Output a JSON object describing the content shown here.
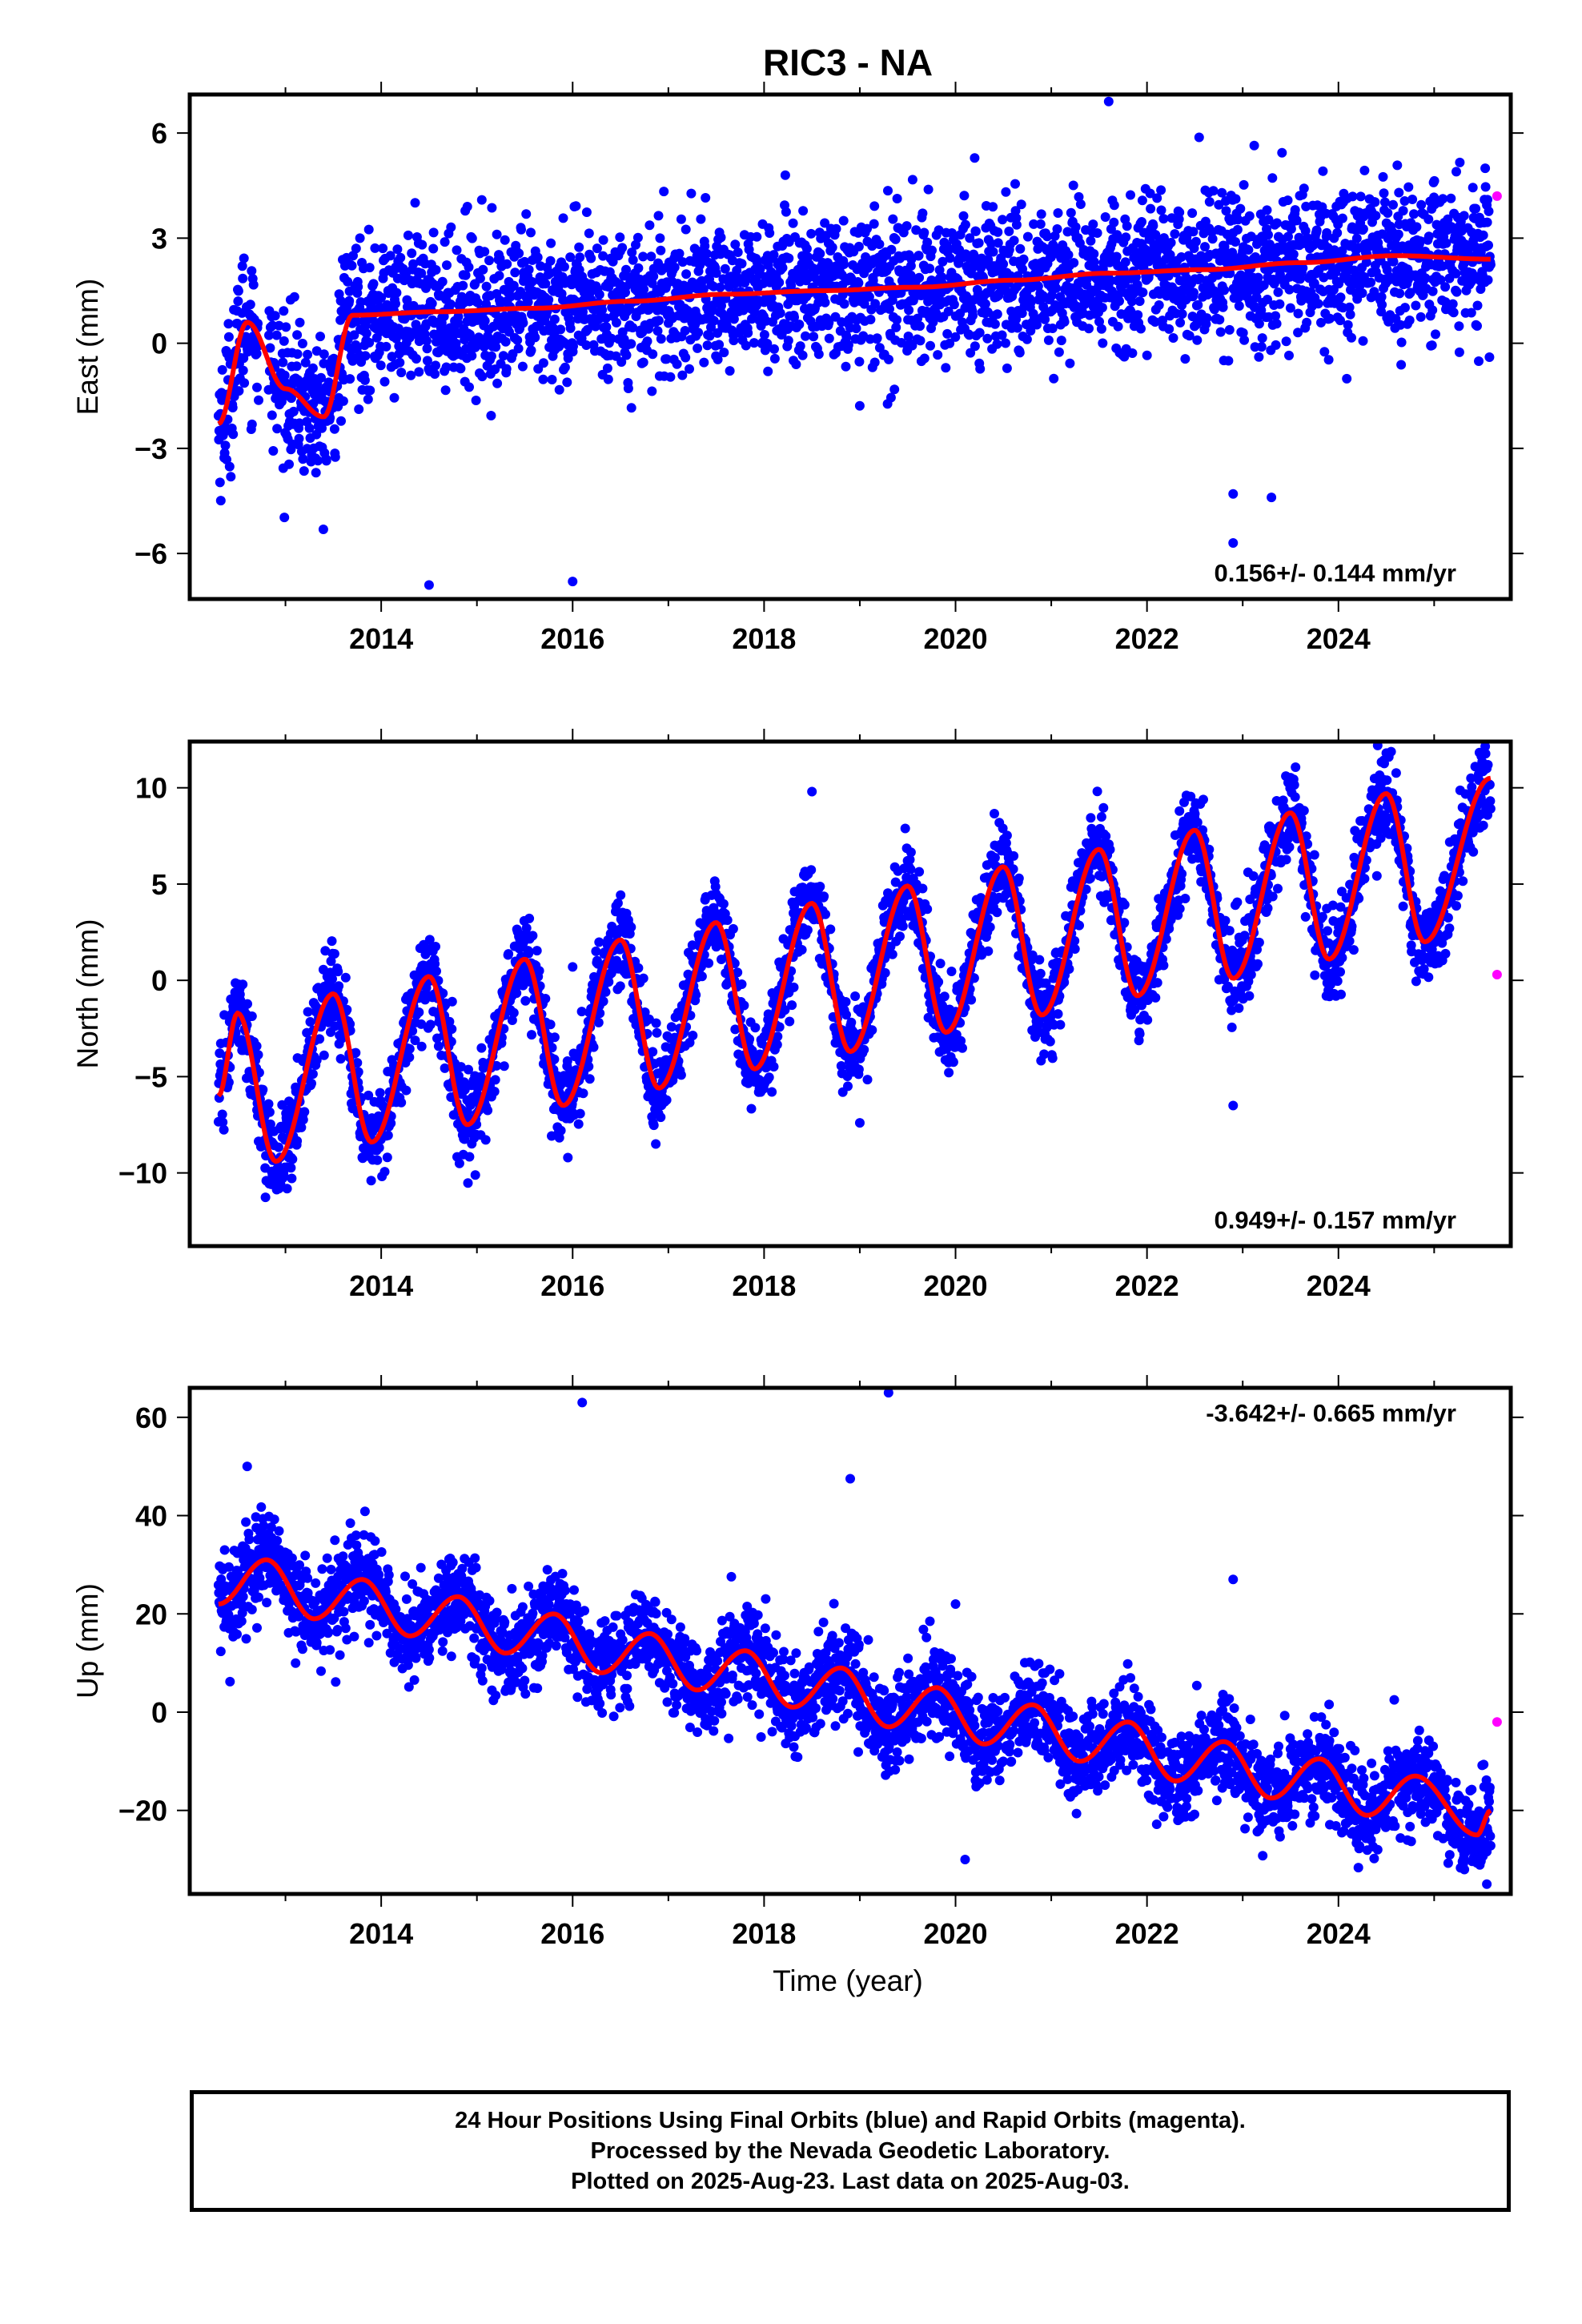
{
  "title": "RIC3 - NA",
  "xlabel": "Time (year)",
  "colors": {
    "final_orbits": "#0000ff",
    "rapid_orbits": "#ff00ff",
    "model_fit": "#ff0000"
  },
  "footer": {
    "line1": "24 Hour Positions Using Final Orbits (blue) and Rapid Orbits (magenta).",
    "line2": "Processed by the Nevada Geodetic Laboratory.",
    "line3": "Plotted on 2025-Aug-23. Last data on 2025-Aug-03."
  },
  "chart_data": [
    {
      "type": "scatter",
      "component": "east",
      "ylabel": "East (mm)",
      "xlim": [
        2012.0,
        2025.8
      ],
      "ylim": [
        -7.3,
        7.1
      ],
      "xticks": [
        2014,
        2016,
        2018,
        2020,
        2022,
        2024
      ],
      "yticks": [
        -6,
        -3,
        0,
        3,
        6
      ],
      "ytick_labels": [
        "−6",
        "−3",
        "0",
        "3",
        "6"
      ],
      "rate_label": "0.156+/- 0.144 mm/yr",
      "rate_label_position": "bottom-right",
      "data_start": 2012.3,
      "data_end": 2025.59,
      "model": {
        "offset": -0.94,
        "rate": 0.156,
        "annual_amp": 1.0,
        "annual_peak": 0.6,
        "semiannual_amp": 0.55,
        "semiannual_peak": 0.85
      },
      "model_anchors": [
        [
          2012.3,
          -2.3
        ],
        [
          2012.6,
          0.6
        ],
        [
          2013.0,
          -1.3
        ],
        [
          2013.4,
          -2.1
        ],
        [
          2013.7,
          0.8
        ],
        [
          2014.6,
          0.9
        ],
        [
          2015.6,
          1.0
        ],
        [
          2016.6,
          1.2
        ],
        [
          2017.6,
          1.4
        ],
        [
          2018.6,
          1.5
        ],
        [
          2019.6,
          1.6
        ],
        [
          2020.6,
          1.8
        ],
        [
          2021.6,
          2.0
        ],
        [
          2022.6,
          2.1
        ],
        [
          2023.6,
          2.3
        ],
        [
          2024.6,
          2.5
        ],
        [
          2025.59,
          2.4
        ]
      ],
      "scatter_sigma": 1.05,
      "scatter_range_note": "observations mostly within -5 to 5 mm",
      "outliers": [
        [
          2014.9,
          3.9
        ],
        [
          2021.6,
          6.9
        ],
        [
          2016.0,
          -6.8
        ],
        [
          2014.5,
          -6.9
        ],
        [
          2022.9,
          -5.7
        ],
        [
          2022.9,
          -4.3
        ],
        [
          2023.3,
          -4.4
        ]
      ],
      "rapid_orbits": [
        [
          2025.59,
          4.2
        ]
      ]
    },
    {
      "type": "scatter",
      "component": "north",
      "ylabel": "North (mm)",
      "xlim": [
        2012.0,
        2025.8
      ],
      "ylim": [
        -13.8,
        12.4
      ],
      "xticks": [
        2014,
        2016,
        2018,
        2020,
        2022,
        2024
      ],
      "yticks": [
        -10,
        -5,
        0,
        5,
        10
      ],
      "ytick_labels": [
        "−10",
        "−5",
        "0",
        "5",
        "10"
      ],
      "rate_label": "0.949+/- 0.157 mm/yr",
      "rate_label_position": "bottom-right",
      "data_start": 2012.3,
      "data_end": 2025.59,
      "model_anchors": [
        [
          2012.3,
          -6.0
        ],
        [
          2012.5,
          -1.7
        ],
        [
          2012.9,
          -9.4
        ],
        [
          2013.5,
          -0.7
        ],
        [
          2013.9,
          -8.4
        ],
        [
          2014.5,
          0.2
        ],
        [
          2014.9,
          -7.5
        ],
        [
          2015.5,
          1.1
        ],
        [
          2015.9,
          -6.5
        ],
        [
          2016.5,
          2.1
        ],
        [
          2016.9,
          -5.6
        ],
        [
          2017.5,
          3.0
        ],
        [
          2017.9,
          -4.6
        ],
        [
          2018.5,
          4.0
        ],
        [
          2018.9,
          -3.7
        ],
        [
          2019.5,
          4.9
        ],
        [
          2019.9,
          -2.7
        ],
        [
          2020.5,
          5.9
        ],
        [
          2020.9,
          -1.8
        ],
        [
          2021.5,
          6.8
        ],
        [
          2021.9,
          -0.8
        ],
        [
          2022.5,
          7.8
        ],
        [
          2022.9,
          0.1
        ],
        [
          2023.5,
          8.7
        ],
        [
          2023.9,
          1.1
        ],
        [
          2024.5,
          9.7
        ],
        [
          2024.9,
          2.0
        ],
        [
          2025.59,
          10.5
        ]
      ],
      "scatter_sigma": 1.15,
      "outliers": [
        [
          2018.5,
          9.8
        ],
        [
          2019.0,
          -7.4
        ],
        [
          2022.9,
          -6.5
        ],
        [
          2016.0,
          0.7
        ],
        [
          2024.5,
          11.8
        ]
      ],
      "rapid_orbits": [
        [
          2025.59,
          0.3
        ]
      ]
    },
    {
      "type": "scatter",
      "component": "up",
      "ylabel": "Up (mm)",
      "xlim": [
        2012.0,
        2025.8
      ],
      "ylim": [
        -37.0,
        66.0
      ],
      "xticks": [
        2014,
        2016,
        2018,
        2020,
        2022,
        2024
      ],
      "yticks": [
        -20,
        0,
        20,
        40,
        60
      ],
      "ytick_labels": [
        "−20",
        "0",
        "20",
        "40",
        "60"
      ],
      "rate_label": "-3.642+/- 0.665 mm/yr",
      "rate_label_position": "top-right",
      "data_start": 2012.3,
      "data_end": 2025.59,
      "model_anchors": [
        [
          2012.3,
          22.0
        ],
        [
          2012.8,
          31.0
        ],
        [
          2013.3,
          19.0
        ],
        [
          2013.8,
          27.0
        ],
        [
          2014.3,
          15.5
        ],
        [
          2014.8,
          23.5
        ],
        [
          2015.3,
          12.0
        ],
        [
          2015.8,
          20.0
        ],
        [
          2016.3,
          8.0
        ],
        [
          2016.8,
          16.0
        ],
        [
          2017.3,
          4.5
        ],
        [
          2017.8,
          12.5
        ],
        [
          2018.3,
          1.0
        ],
        [
          2018.8,
          9.0
        ],
        [
          2019.3,
          -3.0
        ],
        [
          2019.8,
          5.0
        ],
        [
          2020.3,
          -6.5
        ],
        [
          2020.8,
          1.5
        ],
        [
          2021.3,
          -10.0
        ],
        [
          2021.8,
          -2.0
        ],
        [
          2022.3,
          -14.0
        ],
        [
          2022.8,
          -6.0
        ],
        [
          2023.3,
          -17.5
        ],
        [
          2023.8,
          -9.5
        ],
        [
          2024.3,
          -21.0
        ],
        [
          2024.8,
          -13.0
        ],
        [
          2025.45,
          -25.0
        ],
        [
          2025.59,
          -20.0
        ]
      ],
      "scatter_sigma": 4.8,
      "outliers": [
        [
          2016.1,
          63.0
        ],
        [
          2019.3,
          65.0
        ],
        [
          2018.9,
          47.5
        ],
        [
          2020.0,
          22.0
        ],
        [
          2022.9,
          27.0
        ],
        [
          2020.1,
          -30.0
        ],
        [
          2025.55,
          -35.0
        ],
        [
          2012.6,
          50.0
        ]
      ],
      "rapid_orbits": [
        [
          2025.59,
          -2.0
        ]
      ]
    }
  ]
}
